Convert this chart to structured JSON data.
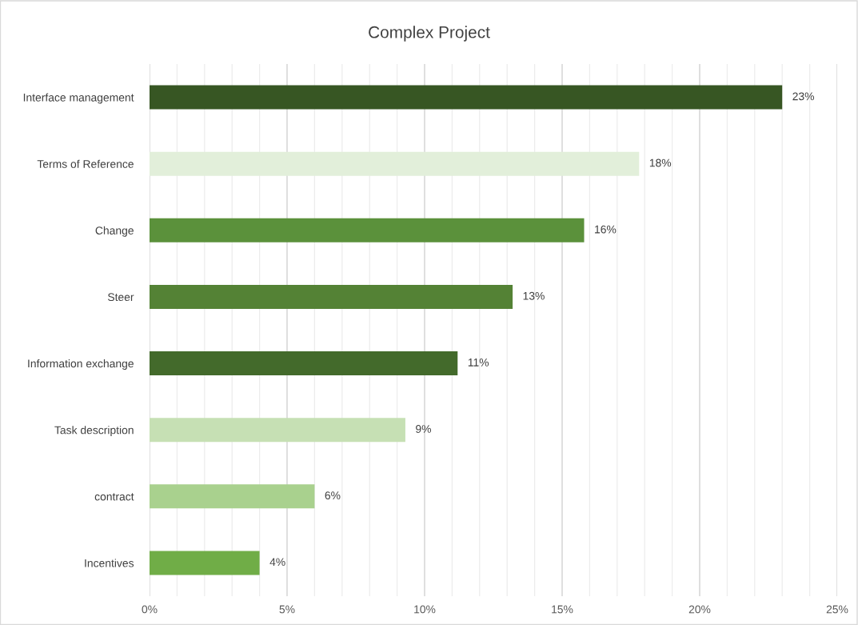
{
  "chart_data": {
    "type": "bar",
    "orientation": "horizontal",
    "title": "Complex Project",
    "categories": [
      "Interface management",
      "Terms of Reference",
      "Change",
      "Steer",
      "Information exchange",
      "Task description",
      "contract",
      "Incentives"
    ],
    "values": [
      23.0,
      17.8,
      15.8,
      13.2,
      11.2,
      9.3,
      6.0,
      4.0
    ],
    "colors": [
      "#375623",
      "#e2efda",
      "#5b913b",
      "#548235",
      "#436a2b",
      "#c6e0b4",
      "#a9d18e",
      "#70ad47"
    ],
    "value_labels": [
      "23%",
      "18%",
      "16%",
      "13%",
      "11%",
      "9%",
      "6%",
      "4%"
    ],
    "xlim": [
      0,
      25
    ],
    "xticks": [
      {
        "value": 0,
        "label": "0%"
      },
      {
        "value": 1,
        "label": null
      },
      {
        "value": 2,
        "label": null
      },
      {
        "value": 3,
        "label": null
      },
      {
        "value": 4,
        "label": null
      },
      {
        "value": 5,
        "label": "5%"
      },
      {
        "value": 6,
        "label": null
      },
      {
        "value": 7,
        "label": null
      },
      {
        "value": 8,
        "label": null
      },
      {
        "value": 9,
        "label": null
      },
      {
        "value": 10,
        "label": "10%"
      },
      {
        "value": 11,
        "label": null
      },
      {
        "value": 12,
        "label": null
      },
      {
        "value": 13,
        "label": null
      },
      {
        "value": 14,
        "label": null
      },
      {
        "value": 15,
        "label": "15%"
      },
      {
        "value": 16,
        "label": null
      },
      {
        "value": 17,
        "label": null
      },
      {
        "value": 18,
        "label": null
      },
      {
        "value": 19,
        "label": null
      },
      {
        "value": 20,
        "label": "20%"
      },
      {
        "value": 21,
        "label": null
      },
      {
        "value": 22,
        "label": null
      },
      {
        "value": 23,
        "label": null
      },
      {
        "value": 24,
        "label": null
      },
      {
        "value": 25,
        "label": "25%"
      }
    ],
    "grid": "x",
    "legend": false
  }
}
